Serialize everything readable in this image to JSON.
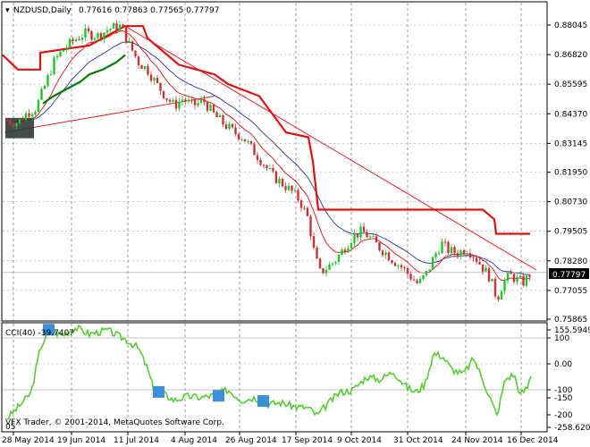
{
  "header": {
    "arrow": "▾",
    "symbol": "NZDUSD,Daily",
    "ohlc": "0.77616 0.77863 0.77565 0.77797"
  },
  "price_axis": {
    "ticks": [
      "0.88045",
      "0.86820",
      "0.85595",
      "0.84370",
      "0.83145",
      "0.81950",
      "0.80730",
      "0.79505",
      "0.78280",
      "0.77055",
      "0.75865"
    ],
    "current_price": "0.77797",
    "current_value": 0.77797
  },
  "cci": {
    "label": "CCI(40) -39.7407",
    "period": 40,
    "value": -39.7407,
    "axis_labels": [
      "155.5949",
      "100",
      "0.00",
      "-100",
      "-150",
      "-200",
      "-258.6201"
    ],
    "footer_left": "VFX Trader, © 2001-2014, MetaQuotes Software Corp.",
    "footer_left_small": "05"
  },
  "time_axis": {
    "labels": [
      "28 May 2014",
      "19 Jun 2014",
      "11 Jul 2014",
      "4 Aug 2014",
      "26 Aug 2014",
      "17 Sep 2014",
      "9 Oct 2014",
      "31 Oct 2014",
      "24 Nov 2014",
      "16 Dec 2014"
    ]
  },
  "colors": {
    "bull": "#22c22c",
    "bear": "#c83232",
    "ma_fast": "#d11",
    "ma_slow": "#223399",
    "stop_line": "#e01010",
    "trend_line": "#e01010",
    "support_line": "#007a00",
    "cci_line": "#55cc33",
    "marker": "#3a8fd8",
    "box": "#2f3a3a"
  }
}
